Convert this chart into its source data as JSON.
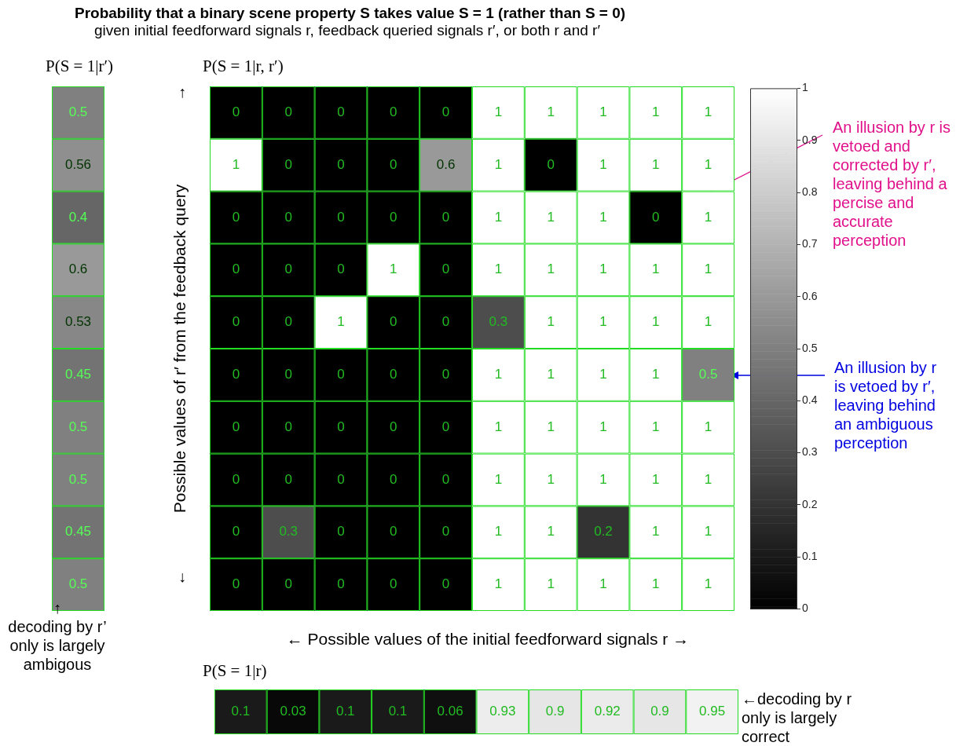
{
  "chart_data": [
    {
      "type": "other",
      "title": "Probability that a binary scene property S takes value S = 1 (rather than S = 0)",
      "subtitle": "given initial feedforward signals r, feedback queried signals r′, or both r and r′"
    },
    {
      "type": "heatmap",
      "title": "P(S = 1|r′)",
      "categories": [
        null
      ],
      "y_categories": [
        null,
        null,
        null,
        null,
        null,
        null,
        null,
        null,
        null,
        null
      ],
      "cells": [
        [
          0.5
        ],
        [
          0.56
        ],
        [
          0.4
        ],
        [
          0.6
        ],
        [
          0.53
        ],
        [
          0.45
        ],
        [
          0.5
        ],
        [
          0.5
        ],
        [
          0.45
        ],
        [
          0.5
        ]
      ],
      "data_labels": true,
      "annotations": [
        "↑\ndecoding by r’ only is largely ambigous"
      ]
    },
    {
      "type": "heatmap",
      "title": "P(S = 1|r, r′)",
      "xlabel": "←  Possible values of the initial feedforward signals r  →",
      "ylabel": "Possible values of r′ from the feedback query",
      "categories": [
        null,
        null,
        null,
        null,
        null,
        null,
        null,
        null,
        null,
        null
      ],
      "y_categories": [
        null,
        null,
        null,
        null,
        null,
        null,
        null,
        null,
        null,
        null
      ],
      "cells": [
        [
          0,
          0,
          0,
          0,
          0,
          1,
          1,
          1,
          1,
          1
        ],
        [
          1,
          0,
          0,
          0,
          0.6,
          1,
          0,
          1,
          1,
          1
        ],
        [
          0,
          0,
          0,
          0,
          0,
          1,
          1,
          1,
          0,
          1
        ],
        [
          0,
          0,
          0,
          1,
          0,
          1,
          1,
          1,
          1,
          1
        ],
        [
          0,
          0,
          1,
          0,
          0,
          0.3,
          1,
          1,
          1,
          1
        ],
        [
          0,
          0,
          0,
          0,
          0,
          1,
          1,
          1,
          1,
          0.5
        ],
        [
          0,
          0,
          0,
          0,
          0,
          1,
          1,
          1,
          1,
          1
        ],
        [
          0,
          0,
          0,
          0,
          0,
          1,
          1,
          1,
          1,
          1
        ],
        [
          0,
          0.3,
          0,
          0,
          0,
          1,
          1,
          0.2,
          1,
          1
        ],
        [
          0,
          0,
          0,
          0,
          0,
          1,
          1,
          1,
          1,
          1
        ]
      ],
      "data_labels": true,
      "clim": [
        0,
        1
      ],
      "cticks": [
        0,
        0.1,
        0.2,
        0.3,
        0.4,
        0.5,
        0.6,
        0.7,
        0.8,
        0.9,
        1
      ],
      "annotations": [
        "↑",
        "↓",
        "An illusion by r is vetoed and corrected by r′, leaving behind a percise and accurate perception",
        "An illusion by r is vetoed by r′, leaving behind an ambiguous perception"
      ]
    },
    {
      "type": "heatmap",
      "title": "P(S = 1|r)",
      "categories": [
        null,
        null,
        null,
        null,
        null,
        null,
        null,
        null,
        null,
        null
      ],
      "y_categories": [
        null
      ],
      "cells": [
        [
          0.1,
          0.03,
          0.1,
          0.1,
          0.06,
          0.93,
          0.9,
          0.92,
          0.9,
          0.95
        ]
      ],
      "data_labels": true,
      "annotations": [
        "←decoding by r only is largely correct"
      ]
    }
  ]
}
